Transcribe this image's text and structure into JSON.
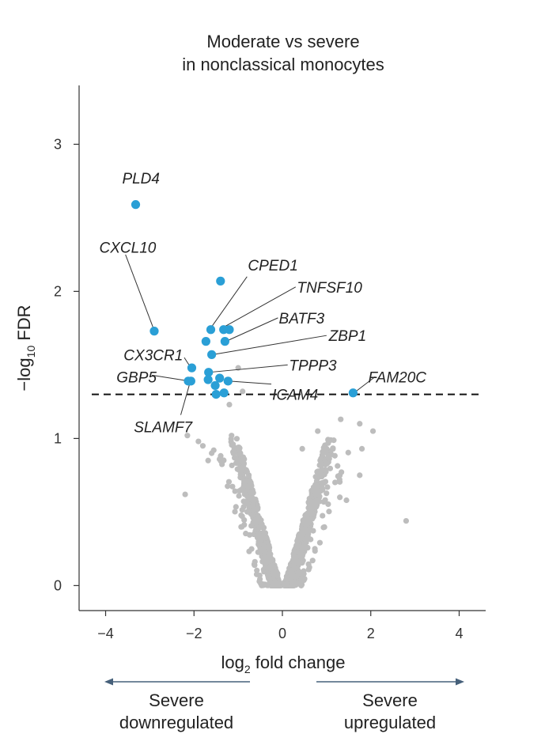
{
  "chart_data": {
    "type": "scatter",
    "title": [
      "Moderate vs severe",
      "in nonclassical monocytes"
    ],
    "xlabel": "log2 fold change",
    "ylabel": "-log10 FDR",
    "xlim": [
      -4.6,
      4.6
    ],
    "ylim": [
      -0.17,
      3.4
    ],
    "xticks": [
      -4,
      -2,
      0,
      2,
      4
    ],
    "xtick_labels": [
      "−4",
      "−2",
      "0",
      "2",
      "4"
    ],
    "yticks": [
      0,
      1,
      2,
      3
    ],
    "ytick_labels": [
      "0",
      "1",
      "2",
      "3"
    ],
    "threshold": 1.3,
    "highlight_color": "#2a9fd6",
    "background_color": "#bdbdbd",
    "significant": [
      {
        "gene": "PLD4",
        "x": -3.32,
        "y": 2.59
      },
      {
        "gene": "CXCL10",
        "x": -2.9,
        "y": 1.73
      },
      {
        "gene": "CPED1",
        "x": -1.62,
        "y": 1.74
      },
      {
        "gene": "",
        "x": -1.4,
        "y": 2.07
      },
      {
        "gene": "TNFSF10",
        "x": -1.33,
        "y": 1.74
      },
      {
        "gene": "",
        "x": -1.2,
        "y": 1.74
      },
      {
        "gene": "BATF3",
        "x": -1.73,
        "y": 1.66
      },
      {
        "gene": "",
        "x": -1.3,
        "y": 1.66
      },
      {
        "gene": "ZBP1",
        "x": -1.6,
        "y": 1.57
      },
      {
        "gene": "CX3CR1",
        "x": -2.05,
        "y": 1.48
      },
      {
        "gene": "TPPP3",
        "x": -1.67,
        "y": 1.45
      },
      {
        "gene": "",
        "x": -1.68,
        "y": 1.4
      },
      {
        "gene": "",
        "x": -1.42,
        "y": 1.41
      },
      {
        "gene": "ICAM4",
        "x": -1.23,
        "y": 1.39
      },
      {
        "gene": "GBP5",
        "x": -2.07,
        "y": 1.39
      },
      {
        "gene": "SLAMF7",
        "x": -2.13,
        "y": 1.39
      },
      {
        "gene": "",
        "x": -1.52,
        "y": 1.36
      },
      {
        "gene": "",
        "x": -1.5,
        "y": 1.3
      },
      {
        "gene": "",
        "x": -1.32,
        "y": 1.31
      },
      {
        "gene": "FAM20C",
        "x": 1.6,
        "y": 1.31
      }
    ],
    "background_outliers": [
      {
        "x": -2.15,
        "y": 1.02
      },
      {
        "x": -2.2,
        "y": 0.62
      },
      {
        "x": -1.9,
        "y": 0.98
      },
      {
        "x": -1.8,
        "y": 0.95
      },
      {
        "x": -1.68,
        "y": 0.85
      },
      {
        "x": -1.6,
        "y": 0.9
      },
      {
        "x": -1.2,
        "y": 1.23
      },
      {
        "x": -1.0,
        "y": 1.48
      },
      {
        "x": -0.9,
        "y": 1.32
      },
      {
        "x": -1.15,
        "y": 1.02
      },
      {
        "x": -0.95,
        "y": 0.9
      },
      {
        "x": 1.32,
        "y": 1.13
      },
      {
        "x": 1.75,
        "y": 1.1
      },
      {
        "x": 1.8,
        "y": 0.93
      },
      {
        "x": 1.75,
        "y": 0.75
      },
      {
        "x": 2.05,
        "y": 1.05
      },
      {
        "x": 2.8,
        "y": 0.44
      },
      {
        "x": 0.8,
        "y": 1.05
      },
      {
        "x": 0.45,
        "y": 0.93
      },
      {
        "x": 1.3,
        "y": 0.75
      },
      {
        "x": 1.3,
        "y": 0.6
      },
      {
        "x": 1.45,
        "y": 0.58
      }
    ],
    "labels": [
      {
        "gene": "PLD4",
        "tx": -3.2,
        "ty": 2.77,
        "anchor": "middle",
        "line": false
      },
      {
        "gene": "CXCL10",
        "tx": -3.5,
        "ty": 2.3,
        "anchor": "middle",
        "line": true,
        "lx": -3.55,
        "ly": 2.25,
        "px": -2.92,
        "py": 1.75
      },
      {
        "gene": "CPED1",
        "tx": -0.78,
        "ty": 2.18,
        "anchor": "start",
        "line": true,
        "lx": -0.8,
        "ly": 2.1,
        "px": -1.6,
        "py": 1.76
      },
      {
        "gene": "TNFSF10",
        "tx": 0.33,
        "ty": 2.03,
        "anchor": "start",
        "line": true,
        "lx": 0.3,
        "ly": 2.03,
        "px": -1.31,
        "py": 1.76
      },
      {
        "gene": "BATF3",
        "tx": -0.08,
        "ty": 1.82,
        "anchor": "start",
        "line": true,
        "lx": -0.1,
        "ly": 1.82,
        "px": -1.28,
        "py": 1.66
      },
      {
        "gene": "ZBP1",
        "tx": 1.05,
        "ty": 1.7,
        "anchor": "start",
        "line": true,
        "lx": 1.0,
        "ly": 1.7,
        "px": -1.58,
        "py": 1.57
      },
      {
        "gene": "CX3CR1",
        "tx": -2.25,
        "ty": 1.57,
        "anchor": "end",
        "line": true,
        "lx": -2.22,
        "ly": 1.55,
        "px": -2.07,
        "py": 1.48
      },
      {
        "gene": "TPPP3",
        "tx": 0.15,
        "ty": 1.5,
        "anchor": "start",
        "line": true,
        "lx": 0.12,
        "ly": 1.5,
        "px": -1.65,
        "py": 1.45
      },
      {
        "gene": "GBP5",
        "tx": -3.3,
        "ty": 1.42,
        "anchor": "middle",
        "line": true,
        "lx": -2.95,
        "ly": 1.43,
        "px": -2.1,
        "py": 1.39
      },
      {
        "gene": "ICAM4",
        "tx": -0.23,
        "ty": 1.3,
        "anchor": "start",
        "line": true,
        "lx": -0.25,
        "ly": 1.37,
        "px": -1.2,
        "py": 1.39
      },
      {
        "gene": "FAM20C",
        "tx": 2.6,
        "ty": 1.42,
        "anchor": "middle",
        "line": true,
        "lx": 2.1,
        "ly": 1.42,
        "px": 1.62,
        "py": 1.31
      },
      {
        "gene": "SLAMF7",
        "tx": -2.7,
        "ty": 1.08,
        "anchor": "middle",
        "line": true,
        "lx": -2.3,
        "ly": 1.16,
        "px": -2.1,
        "py": 1.37
      }
    ]
  },
  "direction_labels": {
    "left": [
      "Severe",
      "downregulated"
    ],
    "right": [
      "Severe",
      "upregulated"
    ]
  }
}
